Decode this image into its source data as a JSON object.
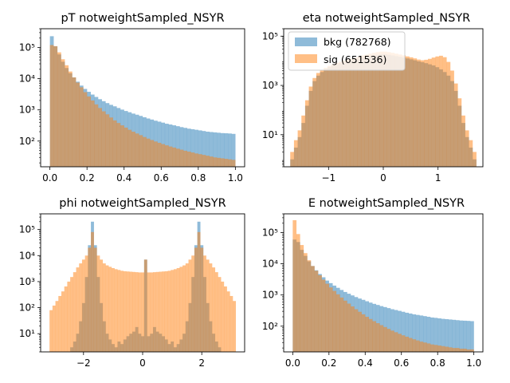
{
  "figure": {
    "background": "#ffffff"
  },
  "colors": {
    "bkg": "#1f77b4",
    "sig": "#ff7f0e",
    "alpha": 0.5
  },
  "chart_data": [
    {
      "type": "histogram",
      "title": "pT notweightSampled_NSYR",
      "xlim": [
        -0.05,
        1.05
      ],
      "ylim_log": [
        15,
        400000
      ],
      "y_scale": "log",
      "x_ticks": [
        0.0,
        0.2,
        0.4,
        0.6,
        0.8,
        1.0
      ],
      "x_tick_labels": [
        "0.0",
        "0.2",
        "0.4",
        "0.6",
        "0.8",
        "1.0"
      ],
      "y_ticks": [
        100,
        1000,
        10000,
        100000
      ],
      "y_tick_labels": [
        "10²",
        "10³",
        "10⁴",
        "10⁵"
      ],
      "bin_edges_range": [
        0.0,
        1.0
      ],
      "n_bins": 50,
      "series": [
        {
          "name": "bkg",
          "values": [
            230000,
            110000,
            60000,
            35000,
            22000,
            15000,
            11000,
            8000,
            6000,
            4700,
            3800,
            3100,
            2600,
            2200,
            1900,
            1650,
            1450,
            1300,
            1150,
            1020,
            920,
            840,
            760,
            700,
            640,
            580,
            530,
            490,
            450,
            420,
            390,
            360,
            340,
            320,
            300,
            280,
            265,
            250,
            240,
            230,
            220,
            210,
            200,
            195,
            190,
            185,
            180,
            178,
            175,
            170
          ]
        },
        {
          "name": "sig",
          "values": [
            120000,
            110000,
            70000,
            42000,
            27000,
            17000,
            11000,
            7500,
            5300,
            3700,
            2700,
            2000,
            1500,
            1150,
            900,
            720,
            570,
            460,
            380,
            320,
            270,
            230,
            200,
            175,
            155,
            135,
            120,
            108,
            97,
            88,
            80,
            73,
            67,
            62,
            57,
            53,
            49,
            46,
            43,
            40,
            38,
            36,
            34,
            32,
            30,
            29,
            28,
            27,
            26,
            25
          ]
        }
      ]
    },
    {
      "type": "histogram",
      "title": "eta notweightSampled_NSYR",
      "xlim": [
        -1.82,
        1.82
      ],
      "ylim_log": [
        0.5,
        200000
      ],
      "y_scale": "log",
      "x_ticks": [
        -1,
        0,
        1
      ],
      "x_tick_labels": [
        "−1",
        "0",
        "1"
      ],
      "y_ticks": [
        10,
        1000,
        100000
      ],
      "y_tick_labels": [
        "10¹",
        "10³",
        "10⁵"
      ],
      "bin_edges_range": [
        -1.7,
        1.7
      ],
      "n_bins": 50,
      "legend": {
        "position": "upper-left",
        "entries": [
          {
            "series": "bkg",
            "label": "bkg (782768)"
          },
          {
            "series": "sig",
            "label": "sig (651536)"
          }
        ]
      },
      "series": [
        {
          "name": "bkg",
          "values": [
            1,
            3,
            8,
            30,
            150,
            600,
            1500,
            2500,
            3500,
            4500,
            5500,
            6500,
            7200,
            8000,
            8800,
            9500,
            10500,
            11500,
            12500,
            13500,
            14500,
            15500,
            16500,
            17500,
            18500,
            18500,
            17500,
            16500,
            15500,
            14500,
            13500,
            12500,
            11500,
            10500,
            9500,
            8800,
            8000,
            7200,
            6500,
            5500,
            4500,
            3500,
            2500,
            1500,
            600,
            150,
            30,
            8,
            3,
            1
          ]
        },
        {
          "name": "sig",
          "values": [
            2,
            6,
            15,
            60,
            250,
            900,
            2000,
            3200,
            4200,
            5200,
            6200,
            7200,
            8200,
            9200,
            10200,
            11200,
            12500,
            13800,
            15000,
            16500,
            18000,
            19500,
            21000,
            22500,
            23500,
            23500,
            22500,
            21000,
            19500,
            18000,
            16500,
            15000,
            13800,
            12500,
            11200,
            10500,
            11000,
            12000,
            13500,
            15000,
            16000,
            14000,
            9000,
            4000,
            1200,
            300,
            60,
            15,
            6,
            2
          ]
        }
      ]
    },
    {
      "type": "histogram",
      "title": "phi notweightSampled_NSYR",
      "xlim": [
        -3.45,
        3.45
      ],
      "ylim_log": [
        2,
        400000
      ],
      "y_scale": "log",
      "x_ticks": [
        -2,
        0,
        2
      ],
      "x_tick_labels": [
        "−2",
        "0",
        "2"
      ],
      "y_ticks": [
        10,
        100,
        1000,
        10000,
        100000
      ],
      "y_tick_labels": [
        "10¹",
        "10²",
        "10³",
        "10⁴",
        "10⁵"
      ],
      "bin_edges_range": [
        -3.15,
        3.15
      ],
      "n_bins": 63,
      "series": [
        {
          "name": "bkg",
          "values": [
            0,
            0,
            0,
            0,
            0,
            0,
            0,
            3,
            5,
            10,
            30,
            150,
            1500,
            25000,
            200000,
            25000,
            1500,
            150,
            30,
            10,
            6,
            4,
            3,
            5,
            4,
            6,
            8,
            10,
            12,
            18,
            10,
            8,
            7000,
            8,
            10,
            18,
            12,
            10,
            8,
            6,
            4,
            5,
            3,
            4,
            6,
            10,
            30,
            150,
            1500,
            25000,
            200000,
            25000,
            1500,
            150,
            30,
            10,
            5,
            3,
            0,
            0,
            0,
            0,
            0
          ]
        },
        {
          "name": "sig",
          "values": [
            80,
            120,
            180,
            280,
            420,
            650,
            1000,
            1500,
            2300,
            3500,
            5000,
            7000,
            10000,
            20000,
            80000,
            20000,
            10000,
            7000,
            5000,
            4200,
            3700,
            3300,
            3000,
            2800,
            2600,
            2500,
            2450,
            2400,
            2350,
            2300,
            2250,
            2250,
            7000,
            2250,
            2250,
            2300,
            2350,
            2400,
            2450,
            2500,
            2600,
            2800,
            3000,
            3300,
            3700,
            4200,
            5000,
            7000,
            10000,
            20000,
            80000,
            20000,
            10000,
            7000,
            5000,
            3500,
            2300,
            1500,
            1000,
            650,
            420,
            280,
            180
          ]
        }
      ]
    },
    {
      "type": "histogram",
      "title": "E notweightSampled_NSYR",
      "xlim": [
        -0.05,
        1.05
      ],
      "ylim_log": [
        15,
        400000
      ],
      "y_scale": "log",
      "x_ticks": [
        0.0,
        0.2,
        0.4,
        0.6,
        0.8,
        1.0
      ],
      "x_tick_labels": [
        "0.0",
        "0.2",
        "0.4",
        "0.6",
        "0.8",
        "1.0"
      ],
      "y_ticks": [
        100,
        1000,
        10000,
        100000
      ],
      "y_tick_labels": [
        "10²",
        "10³",
        "10⁴",
        "10⁵"
      ],
      "bin_edges_range": [
        0.0,
        1.0
      ],
      "n_bins": 50,
      "series": [
        {
          "name": "bkg",
          "values": [
            60000,
            50000,
            28000,
            18000,
            12000,
            8500,
            6200,
            4700,
            3700,
            2900,
            2400,
            2000,
            1700,
            1450,
            1250,
            1100,
            970,
            860,
            770,
            700,
            630,
            570,
            520,
            480,
            440,
            410,
            380,
            350,
            330,
            310,
            290,
            270,
            255,
            240,
            230,
            220,
            210,
            200,
            190,
            185,
            178,
            172,
            168,
            164,
            160,
            156,
            152,
            150,
            148,
            145
          ]
        },
        {
          "name": "sig",
          "values": [
            250000,
            90000,
            40000,
            22000,
            13000,
            8500,
            6000,
            4300,
            3100,
            2300,
            1750,
            1350,
            1050,
            830,
            660,
            530,
            430,
            350,
            290,
            240,
            200,
            170,
            145,
            125,
            108,
            94,
            82,
            72,
            64,
            57,
            51,
            46,
            42,
            38,
            35,
            32,
            30,
            28,
            26,
            25,
            24,
            23,
            22,
            21,
            20,
            20,
            19,
            19,
            18,
            18
          ]
        }
      ]
    }
  ]
}
